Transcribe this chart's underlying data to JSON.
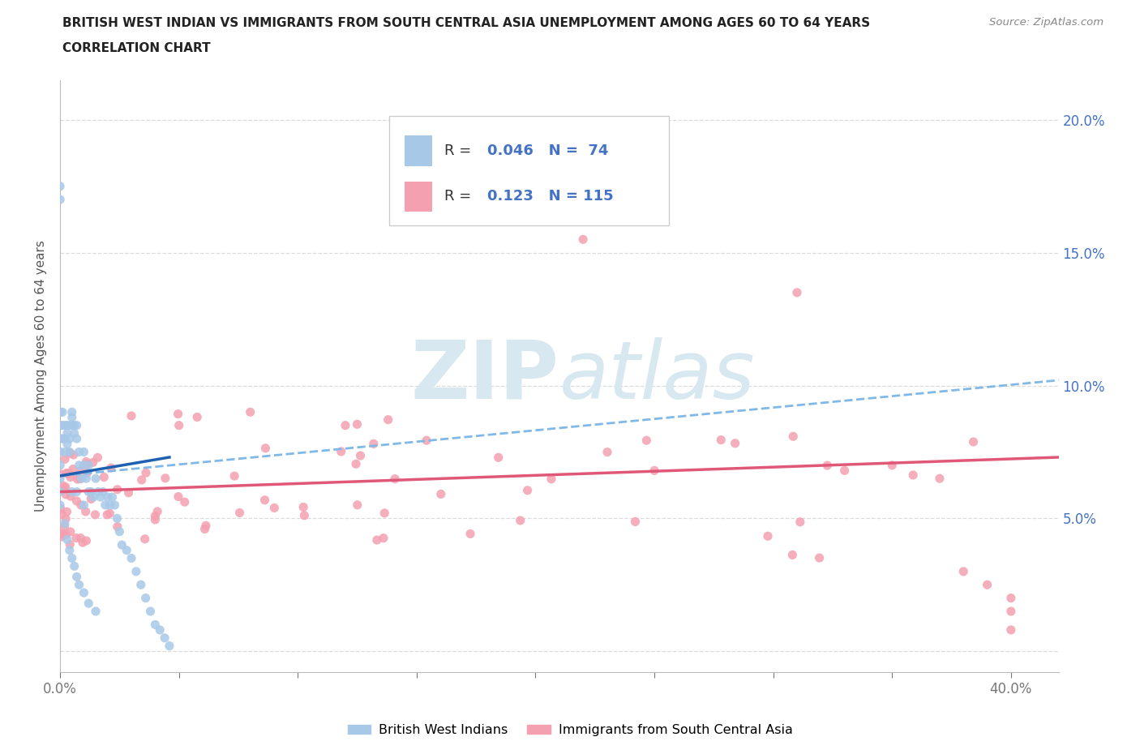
{
  "title_line1": "BRITISH WEST INDIAN VS IMMIGRANTS FROM SOUTH CENTRAL ASIA UNEMPLOYMENT AMONG AGES 60 TO 64 YEARS",
  "title_line2": "CORRELATION CHART",
  "source_text": "Source: ZipAtlas.com",
  "ylabel": "Unemployment Among Ages 60 to 64 years",
  "xlim": [
    0.0,
    0.42
  ],
  "ylim": [
    -0.008,
    0.215
  ],
  "xtick_positions": [
    0.0,
    0.05,
    0.1,
    0.15,
    0.2,
    0.25,
    0.3,
    0.35,
    0.4
  ],
  "xtick_labels": [
    "0.0%",
    "",
    "",
    "",
    "",
    "",
    "",
    "",
    "40.0%"
  ],
  "ytick_positions": [
    0.0,
    0.05,
    0.1,
    0.15,
    0.2
  ],
  "ytick_labels_right": [
    "",
    "5.0%",
    "10.0%",
    "15.0%",
    "20.0%"
  ],
  "R_blue": "0.046",
  "N_blue": "74",
  "R_pink": "0.123",
  "N_pink": "115",
  "blue_scatter_color": "#a8c8e8",
  "pink_scatter_color": "#f4a0b0",
  "trend_blue_solid_color": "#2060b0",
  "trend_blue_dash_color": "#80b8e8",
  "trend_pink_color": "#e05878",
  "watermark_color": "#d8e8f0",
  "background_color": "#ffffff",
  "grid_color": "#d8d8d8",
  "title_color": "#222222",
  "axis_label_color": "#555555",
  "tick_color_right": "#4472c4",
  "tick_color_x": "#777777",
  "source_color": "#888888",
  "legend_value_color": "#4472c4",
  "legend_label_color": "#333333",
  "legend_edge_color": "#cccccc",
  "bottom_legend_label1": "British West Indians",
  "bottom_legend_label2": "Immigrants from South Central Asia"
}
